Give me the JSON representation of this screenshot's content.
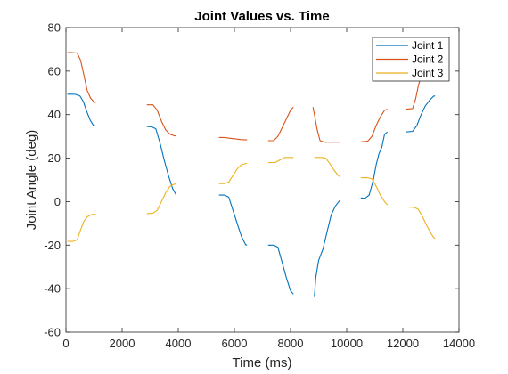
{
  "chart_data": {
    "type": "line",
    "title": "Joint Values vs. Time",
    "xlabel": "Time (ms)",
    "ylabel": "Joint Angle (deg)",
    "xlim": [
      0,
      14000
    ],
    "ylim": [
      -60,
      80
    ],
    "xticks": [
      0,
      2000,
      4000,
      6000,
      8000,
      10000,
      12000,
      14000
    ],
    "yticks": [
      -60,
      -40,
      -20,
      0,
      20,
      40,
      60,
      80
    ],
    "xtick_labels": [
      "0",
      "2000",
      "4000",
      "6000",
      "8000",
      "10000",
      "12000",
      "14000"
    ],
    "ytick_labels": [
      "-60",
      "-40",
      "-20",
      "0",
      "20",
      "40",
      "60",
      "80"
    ],
    "grid": false,
    "legend_position": "top-right",
    "series": [
      {
        "name": "Joint 1",
        "color": "#0072BD",
        "segments": [
          [
            [
              50,
              49.4
            ],
            [
              200,
              49.4
            ],
            [
              350,
              49.3
            ],
            [
              500,
              48.5
            ],
            [
              620,
              46
            ],
            [
              740,
              41.5
            ],
            [
              860,
              37.5
            ],
            [
              980,
              35
            ],
            [
              1060,
              34.8
            ]
          ],
          [
            [
              2880,
              34.5
            ],
            [
              3050,
              34.4
            ],
            [
              3200,
              33.5
            ],
            [
              3350,
              27
            ],
            [
              3500,
              19
            ],
            [
              3650,
              12
            ],
            [
              3800,
              6
            ],
            [
              3920,
              3.2
            ]
          ],
          [
            [
              5450,
              3
            ],
            [
              5650,
              3
            ],
            [
              5800,
              2
            ],
            [
              5950,
              -4
            ],
            [
              6100,
              -10
            ],
            [
              6250,
              -16
            ],
            [
              6400,
              -19.8
            ],
            [
              6450,
              -20
            ]
          ],
          [
            [
              7200,
              -20
            ],
            [
              7400,
              -20
            ],
            [
              7550,
              -21
            ],
            [
              7700,
              -28
            ],
            [
              7850,
              -35
            ],
            [
              8000,
              -41
            ],
            [
              8100,
              -42.5
            ]
          ],
          [
            [
              8850,
              -43.5
            ],
            [
              8900,
              -35
            ],
            [
              9000,
              -27
            ],
            [
              9150,
              -22
            ],
            [
              9300,
              -14
            ],
            [
              9450,
              -6
            ],
            [
              9600,
              -2
            ],
            [
              9750,
              0.5
            ]
          ],
          [
            [
              10500,
              1.7
            ],
            [
              10650,
              1.5
            ],
            [
              10800,
              3
            ],
            [
              10950,
              10
            ],
            [
              11050,
              17
            ],
            [
              11150,
              22
            ],
            [
              11250,
              25
            ],
            [
              11350,
              31
            ],
            [
              11450,
              32
            ]
          ],
          [
            [
              12100,
              32
            ],
            [
              12350,
              32.3
            ],
            [
              12500,
              35
            ],
            [
              12650,
              40
            ],
            [
              12800,
              44
            ],
            [
              12950,
              46.5
            ],
            [
              13100,
              48.5
            ],
            [
              13150,
              48.6
            ]
          ]
        ]
      },
      {
        "name": "Joint 2",
        "color": "#D95319",
        "segments": [
          [
            [
              50,
              68.5
            ],
            [
              200,
              68.5
            ],
            [
              400,
              68.3
            ],
            [
              520,
              65
            ],
            [
              640,
              58
            ],
            [
              760,
              51
            ],
            [
              880,
              47.5
            ],
            [
              1000,
              45.8
            ],
            [
              1060,
              45.5
            ]
          ],
          [
            [
              2880,
              44.5
            ],
            [
              3100,
              44.5
            ],
            [
              3250,
              42
            ],
            [
              3400,
              37
            ],
            [
              3550,
              33
            ],
            [
              3700,
              31
            ],
            [
              3850,
              30.3
            ],
            [
              3920,
              30.2
            ]
          ],
          [
            [
              5450,
              29.5
            ],
            [
              5650,
              29.5
            ],
            [
              5850,
              29.1
            ],
            [
              6050,
              28.8
            ],
            [
              6250,
              28.5
            ],
            [
              6450,
              28.4
            ]
          ],
          [
            [
              7200,
              28
            ],
            [
              7400,
              28
            ],
            [
              7550,
              30
            ],
            [
              7700,
              34
            ],
            [
              7850,
              38
            ],
            [
              8000,
              42
            ],
            [
              8100,
              43.5
            ]
          ],
          [
            [
              8800,
              43.5
            ],
            [
              8850,
              40
            ],
            [
              8950,
              33
            ],
            [
              9050,
              28
            ],
            [
              9200,
              27.3
            ],
            [
              9450,
              27.3
            ],
            [
              9750,
              27.3
            ]
          ],
          [
            [
              10500,
              27.5
            ],
            [
              10750,
              27.8
            ],
            [
              10900,
              30
            ],
            [
              11050,
              35
            ],
            [
              11200,
              39
            ],
            [
              11350,
              42
            ],
            [
              11450,
              42.5
            ]
          ],
          [
            [
              12100,
              42.5
            ],
            [
              12350,
              42.8
            ],
            [
              12450,
              47
            ],
            [
              12550,
              53
            ],
            [
              12650,
              58
            ],
            [
              12750,
              62
            ],
            [
              12850,
              65
            ],
            [
              12950,
              67
            ],
            [
              13050,
              68.5
            ],
            [
              13150,
              69
            ]
          ]
        ]
      },
      {
        "name": "Joint 3",
        "color": "#EDB120",
        "segments": [
          [
            [
              50,
              -18.3
            ],
            [
              250,
              -18.3
            ],
            [
              400,
              -17.5
            ],
            [
              520,
              -13
            ],
            [
              640,
              -9
            ],
            [
              760,
              -7
            ],
            [
              900,
              -6
            ],
            [
              1060,
              -5.8
            ]
          ],
          [
            [
              2880,
              -5.5
            ],
            [
              3100,
              -5.3
            ],
            [
              3250,
              -4
            ],
            [
              3400,
              0
            ],
            [
              3550,
              4
            ],
            [
              3700,
              7
            ],
            [
              3850,
              8
            ],
            [
              3920,
              8.1
            ]
          ],
          [
            [
              5450,
              8.3
            ],
            [
              5650,
              8.3
            ],
            [
              5800,
              9
            ],
            [
              5950,
              12
            ],
            [
              6100,
              15
            ],
            [
              6250,
              17
            ],
            [
              6450,
              17.6
            ]
          ],
          [
            [
              7200,
              18
            ],
            [
              7450,
              18
            ],
            [
              7600,
              19
            ],
            [
              7800,
              20.3
            ],
            [
              8000,
              20.3
            ],
            [
              8100,
              20.2
            ]
          ],
          [
            [
              8850,
              20.3
            ],
            [
              9100,
              20.3
            ],
            [
              9250,
              20
            ],
            [
              9400,
              17.5
            ],
            [
              9550,
              14.5
            ],
            [
              9700,
              12
            ],
            [
              9750,
              11.5
            ]
          ],
          [
            [
              10500,
              11
            ],
            [
              10750,
              11
            ],
            [
              10900,
              10.5
            ],
            [
              11050,
              7
            ],
            [
              11200,
              3
            ],
            [
              11350,
              0
            ],
            [
              11450,
              -1.5
            ]
          ],
          [
            [
              12100,
              -2.5
            ],
            [
              12400,
              -2.6
            ],
            [
              12550,
              -3.5
            ],
            [
              12700,
              -7
            ],
            [
              12850,
              -11
            ],
            [
              13000,
              -14.5
            ],
            [
              13100,
              -16.5
            ],
            [
              13150,
              -17
            ]
          ]
        ]
      }
    ]
  }
}
